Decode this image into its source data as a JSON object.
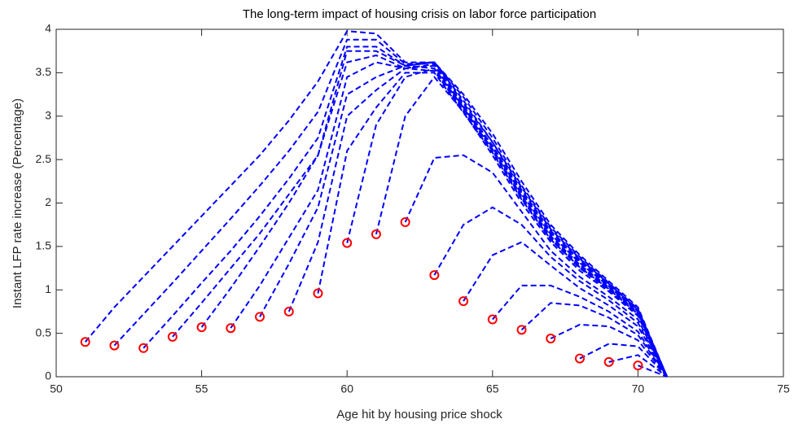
{
  "chart_data": {
    "type": "line",
    "title": "The long-term impact of housing crisis on labor force participation",
    "x_label": "Age hit by housing price shock",
    "y_label": "Instant LFP rate increase (Percentage)",
    "xlim": [
      50,
      75
    ],
    "xticks": [
      50,
      55,
      60,
      65,
      70,
      75
    ],
    "ylim": [
      0,
      4
    ],
    "yticks": [
      0,
      0.5,
      1,
      1.5,
      2,
      2.5,
      3,
      3.5,
      4
    ],
    "grid": false,
    "line_style": "dashed",
    "color": "#0000ff",
    "marker_color": "#ff0000",
    "series": [
      {
        "x": [
          51,
          52,
          53,
          54,
          55,
          56,
          57,
          58,
          59,
          60,
          61,
          62,
          63,
          64,
          65,
          66,
          67,
          68,
          69,
          70,
          71
        ],
        "values": [
          0.4,
          0.8,
          1.15,
          1.5,
          1.85,
          2.2,
          2.55,
          2.95,
          3.4,
          3.98,
          3.95,
          3.62,
          3.62,
          3.25,
          2.8,
          2.25,
          1.75,
          1.4,
          1.1,
          0.8,
          0
        ]
      },
      {
        "x": [
          52,
          53,
          54,
          55,
          56,
          57,
          58,
          59,
          60,
          61,
          62,
          63,
          64,
          65,
          66,
          67,
          68,
          69,
          70,
          71
        ],
        "values": [
          0.36,
          0.72,
          1.08,
          1.45,
          1.82,
          2.2,
          2.6,
          3.05,
          3.88,
          3.88,
          3.6,
          3.62,
          3.22,
          2.75,
          2.2,
          1.72,
          1.38,
          1.08,
          0.78,
          0
        ]
      },
      {
        "x": [
          53,
          54,
          55,
          56,
          57,
          58,
          59,
          60,
          61,
          62,
          63,
          64,
          65,
          66,
          67,
          68,
          69,
          70,
          71
        ],
        "values": [
          0.33,
          0.7,
          1.08,
          1.45,
          1.85,
          2.28,
          2.75,
          3.8,
          3.8,
          3.58,
          3.62,
          3.18,
          2.7,
          2.18,
          1.7,
          1.36,
          1.07,
          0.77,
          0
        ]
      },
      {
        "x": [
          54,
          55,
          56,
          57,
          58,
          59,
          60,
          61,
          62,
          63,
          64,
          65,
          66,
          67,
          68,
          69,
          70,
          71
        ],
        "values": [
          0.46,
          0.85,
          1.25,
          1.65,
          2.1,
          2.55,
          3.75,
          3.75,
          3.58,
          3.62,
          3.15,
          2.7,
          2.15,
          1.68,
          1.35,
          1.06,
          0.77,
          0
        ]
      },
      {
        "x": [
          55,
          56,
          57,
          58,
          59,
          60,
          61,
          62,
          63,
          64,
          65,
          66,
          67,
          68,
          69,
          70,
          71
        ],
        "values": [
          0.57,
          1.02,
          1.5,
          2.0,
          2.55,
          3.62,
          3.7,
          3.55,
          3.6,
          3.12,
          2.66,
          2.12,
          1.66,
          1.33,
          1.05,
          0.76,
          0
        ]
      },
      {
        "x": [
          56,
          57,
          58,
          59,
          60,
          61,
          62,
          63,
          64,
          65,
          66,
          67,
          68,
          69,
          70,
          71
        ],
        "values": [
          0.56,
          1.05,
          1.6,
          2.15,
          3.45,
          3.62,
          3.55,
          3.58,
          3.1,
          2.64,
          2.1,
          1.64,
          1.31,
          1.04,
          0.75,
          0
        ]
      },
      {
        "x": [
          57,
          58,
          59,
          60,
          61,
          62,
          63,
          64,
          65,
          66,
          67,
          68,
          69,
          70,
          71
        ],
        "values": [
          0.69,
          1.3,
          1.95,
          3.25,
          3.45,
          3.58,
          3.55,
          3.08,
          2.62,
          2.08,
          1.62,
          1.29,
          1.03,
          0.74,
          0
        ]
      },
      {
        "x": [
          58,
          59,
          60,
          61,
          62,
          63,
          64,
          65,
          66,
          67,
          68,
          69,
          70,
          71
        ],
        "values": [
          0.75,
          1.55,
          3.0,
          3.3,
          3.55,
          3.52,
          3.06,
          2.6,
          2.06,
          1.6,
          1.27,
          1.02,
          0.73,
          0
        ]
      },
      {
        "x": [
          59,
          60,
          61,
          62,
          63,
          64,
          65,
          66,
          67,
          68,
          69,
          70,
          71
        ],
        "values": [
          0.96,
          2.6,
          3.1,
          3.5,
          3.5,
          3.04,
          2.58,
          2.04,
          1.58,
          1.26,
          1.01,
          0.72,
          0
        ]
      },
      {
        "x": [
          60,
          61,
          62,
          63,
          64,
          65,
          66,
          67,
          68,
          69,
          70,
          71
        ],
        "values": [
          1.54,
          2.9,
          3.45,
          3.55,
          3.1,
          2.6,
          2.05,
          1.58,
          1.25,
          1.0,
          0.72,
          0
        ]
      },
      {
        "x": [
          61,
          62,
          63,
          64,
          65,
          66,
          67,
          68,
          69,
          70,
          71
        ],
        "values": [
          1.64,
          3.0,
          3.45,
          3.05,
          2.55,
          2.0,
          1.55,
          1.22,
          0.98,
          0.7,
          0
        ]
      },
      {
        "x": [
          62,
          63,
          64,
          65,
          66,
          67,
          68,
          69,
          70,
          71
        ],
        "values": [
          1.78,
          2.52,
          2.55,
          2.35,
          1.9,
          1.45,
          1.15,
          0.92,
          0.66,
          0
        ]
      },
      {
        "x": [
          63,
          64,
          65,
          66,
          67,
          68,
          69,
          70,
          71
        ],
        "values": [
          1.17,
          1.75,
          1.95,
          1.75,
          1.38,
          1.1,
          0.88,
          0.62,
          0
        ]
      },
      {
        "x": [
          64,
          65,
          66,
          67,
          68,
          69,
          70,
          71
        ],
        "values": [
          0.87,
          1.4,
          1.55,
          1.28,
          1.02,
          0.82,
          0.58,
          0
        ]
      },
      {
        "x": [
          65,
          66,
          67,
          68,
          69,
          70,
          71
        ],
        "values": [
          0.66,
          1.05,
          1.05,
          0.92,
          0.75,
          0.52,
          0
        ]
      },
      {
        "x": [
          66,
          67,
          68,
          69,
          70,
          71
        ],
        "values": [
          0.54,
          0.85,
          0.82,
          0.68,
          0.48,
          0
        ]
      },
      {
        "x": [
          67,
          68,
          69,
          70,
          71
        ],
        "values": [
          0.44,
          0.6,
          0.58,
          0.42,
          0
        ]
      },
      {
        "x": [
          68,
          69,
          70,
          71
        ],
        "values": [
          0.21,
          0.38,
          0.35,
          0
        ]
      },
      {
        "x": [
          69,
          70,
          71
        ],
        "values": [
          0.17,
          0.25,
          0
        ]
      },
      {
        "x": [
          70,
          71
        ],
        "values": [
          0.13,
          0
        ]
      }
    ]
  }
}
